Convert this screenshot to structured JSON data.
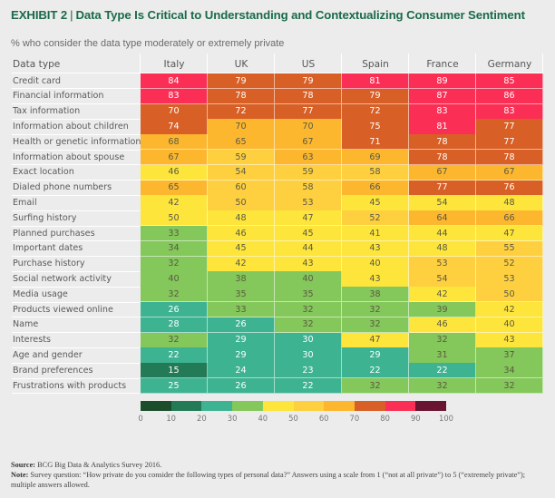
{
  "title": {
    "exhibit": "EXHIBIT 2",
    "separator": "|",
    "text": "Data Type Is Critical to Understanding and Contextualizing Consumer Sentiment"
  },
  "subtitle": "% who consider the data type moderately or extremely private",
  "colors": {
    "b0": "#1b4d2b",
    "b1": "#237a56",
    "b2": "#3db391",
    "b3": "#84c75a",
    "b4": "#fde53c",
    "b5": "#fed040",
    "b6": "#fdb72e",
    "b7": "#d85f25",
    "b8": "#fb2f55",
    "b9": "#6a1432",
    "text_dark": "#5b5a44",
    "text_light": "#ffffff"
  },
  "chart_data": {
    "type": "heatmap",
    "title": "Data Type Is Critical to Understanding and Contextualizing Consumer Sentiment",
    "subtitle": "% who consider the data type moderately or extremely private",
    "row_header": "Data type",
    "columns": [
      "Italy",
      "UK",
      "US",
      "Spain",
      "France",
      "Germany"
    ],
    "rows": [
      "Credit card",
      "Financial information",
      "Tax information",
      "Information about children",
      "Health or genetic information",
      "Information about spouse",
      "Exact location",
      "Dialed phone numbers",
      "Email",
      "Surfing history",
      "Planned purchases",
      "Important dates",
      "Purchase history",
      "Social network activity",
      "Media usage",
      "Products viewed online",
      "Name",
      "Interests",
      "Age and gender",
      "Brand preferences",
      "Frustrations with products"
    ],
    "values": [
      [
        84,
        79,
        79,
        81,
        89,
        85
      ],
      [
        83,
        78,
        78,
        79,
        87,
        86
      ],
      [
        70,
        72,
        77,
        72,
        83,
        83
      ],
      [
        74,
        70,
        70,
        75,
        81,
        77
      ],
      [
        68,
        65,
        67,
        71,
        78,
        77
      ],
      [
        67,
        59,
        63,
        69,
        78,
        78
      ],
      [
        46,
        54,
        59,
        58,
        67,
        67
      ],
      [
        65,
        60,
        58,
        66,
        77,
        76
      ],
      [
        42,
        50,
        53,
        45,
        54,
        48
      ],
      [
        50,
        48,
        47,
        52,
        64,
        66
      ],
      [
        33,
        46,
        45,
        41,
        44,
        47
      ],
      [
        34,
        45,
        44,
        43,
        48,
        55
      ],
      [
        32,
        42,
        43,
        40,
        53,
        52
      ],
      [
        40,
        38,
        40,
        43,
        54,
        53
      ],
      [
        32,
        35,
        35,
        38,
        42,
        50
      ],
      [
        26,
        33,
        32,
        32,
        39,
        42
      ],
      [
        28,
        26,
        32,
        32,
        46,
        40
      ],
      [
        32,
        29,
        30,
        47,
        32,
        43
      ],
      [
        22,
        29,
        30,
        29,
        31,
        37
      ],
      [
        15,
        24,
        23,
        22,
        22,
        34
      ],
      [
        25,
        26,
        22,
        32,
        32,
        32
      ]
    ],
    "color_buckets": [
      [
        8,
        7,
        7,
        8,
        8,
        8
      ],
      [
        8,
        7,
        7,
        7,
        8,
        8
      ],
      [
        7,
        7,
        7,
        7,
        8,
        8
      ],
      [
        7,
        6,
        6,
        7,
        8,
        7
      ],
      [
        6,
        6,
        6,
        7,
        7,
        7
      ],
      [
        6,
        5,
        6,
        6,
        7,
        7
      ],
      [
        4,
        5,
        5,
        5,
        6,
        6
      ],
      [
        6,
        5,
        5,
        6,
        7,
        7
      ],
      [
        4,
        5,
        5,
        4,
        4,
        4
      ],
      [
        4,
        4,
        4,
        5,
        6,
        6
      ],
      [
        3,
        4,
        4,
        4,
        4,
        4
      ],
      [
        3,
        4,
        4,
        4,
        4,
        5
      ],
      [
        3,
        4,
        4,
        4,
        5,
        5
      ],
      [
        3,
        3,
        3,
        4,
        5,
        5
      ],
      [
        3,
        3,
        3,
        3,
        4,
        5
      ],
      [
        2,
        3,
        3,
        3,
        3,
        4
      ],
      [
        2,
        2,
        3,
        3,
        4,
        4
      ],
      [
        3,
        2,
        2,
        4,
        3,
        4
      ],
      [
        2,
        2,
        2,
        2,
        3,
        3
      ],
      [
        1,
        2,
        2,
        2,
        2,
        3
      ],
      [
        2,
        2,
        2,
        3,
        3,
        3
      ]
    ],
    "legend": {
      "type": "color-scale",
      "ticks": [
        "0",
        "10",
        "20",
        "30",
        "40",
        "50",
        "60",
        "70",
        "80",
        "90",
        "100"
      ],
      "range": [
        0,
        100
      ],
      "placement": "bottom-center"
    }
  },
  "footer": {
    "source_label": "Source:",
    "source_text": " BCG Big Data & Analytics Survey 2016.",
    "note_label": "Note:",
    "note_text": " Survey question: “How private do you consider the following types of personal data?” Answers using a scale from 1 (“not at all private”) to 5 (“extremely private”); multiple answers allowed."
  }
}
